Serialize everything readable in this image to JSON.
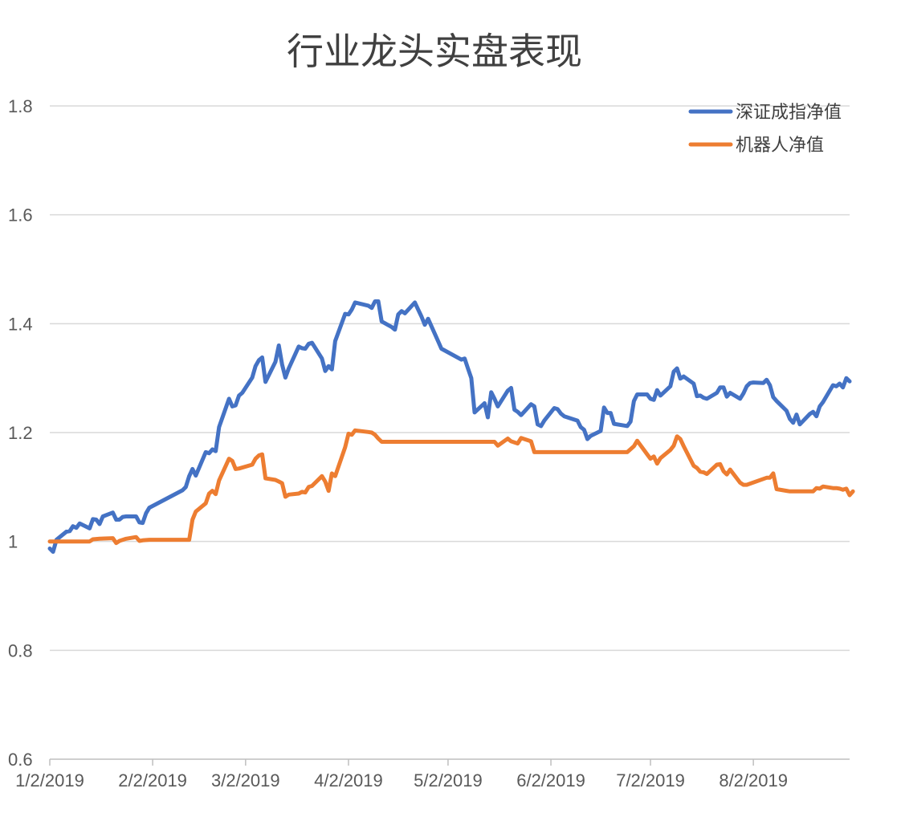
{
  "chart_data": {
    "type": "line",
    "title": "行业龙头实盘表现",
    "xlabel": "",
    "ylabel": "",
    "ylim": [
      0.6,
      1.8
    ],
    "yticks": [
      "0.6",
      "0.8",
      "1",
      "1.2",
      "1.4",
      "1.6",
      "1.8"
    ],
    "xlim": [
      "2019-01-02",
      "2019-08-31"
    ],
    "xticks": [
      "1/2/2019",
      "2/2/2019",
      "3/2/2019",
      "4/2/2019",
      "5/2/2019",
      "6/2/2019",
      "7/2/2019",
      "8/2/2019"
    ],
    "grid": true,
    "legend_position": "top-right",
    "series": [
      {
        "name": "深证成指净值",
        "color": "#4472C4",
        "points": [
          [
            "2019-01-02",
            0.987
          ],
          [
            "2019-01-03",
            0.981
          ],
          [
            "2019-01-04",
            1.003
          ],
          [
            "2019-01-07",
            1.018
          ],
          [
            "2019-01-08",
            1.019
          ],
          [
            "2019-01-09",
            1.028
          ],
          [
            "2019-01-10",
            1.025
          ],
          [
            "2019-01-11",
            1.033
          ],
          [
            "2019-01-14",
            1.024
          ],
          [
            "2019-01-15",
            1.041
          ],
          [
            "2019-01-16",
            1.04
          ],
          [
            "2019-01-17",
            1.032
          ],
          [
            "2019-01-18",
            1.046
          ],
          [
            "2019-01-21",
            1.053
          ],
          [
            "2019-01-22",
            1.04
          ],
          [
            "2019-01-23",
            1.04
          ],
          [
            "2019-01-24",
            1.045
          ],
          [
            "2019-01-25",
            1.046
          ],
          [
            "2019-01-28",
            1.046
          ],
          [
            "2019-01-29",
            1.035
          ],
          [
            "2019-01-30",
            1.034
          ],
          [
            "2019-01-31",
            1.052
          ],
          [
            "2019-02-01",
            1.062
          ],
          [
            "2019-02-11",
            1.094
          ],
          [
            "2019-02-12",
            1.1
          ],
          [
            "2019-02-13",
            1.12
          ],
          [
            "2019-02-14",
            1.133
          ],
          [
            "2019-02-15",
            1.121
          ],
          [
            "2019-02-18",
            1.164
          ],
          [
            "2019-02-19",
            1.162
          ],
          [
            "2019-02-20",
            1.169
          ],
          [
            "2019-02-21",
            1.166
          ],
          [
            "2019-02-22",
            1.21
          ],
          [
            "2019-02-25",
            1.262
          ],
          [
            "2019-02-26",
            1.248
          ],
          [
            "2019-02-27",
            1.25
          ],
          [
            "2019-02-28",
            1.268
          ],
          [
            "2019-03-01",
            1.273
          ],
          [
            "2019-03-04",
            1.301
          ],
          [
            "2019-03-05",
            1.322
          ],
          [
            "2019-03-06",
            1.333
          ],
          [
            "2019-03-07",
            1.338
          ],
          [
            "2019-03-08",
            1.293
          ],
          [
            "2019-03-11",
            1.33
          ],
          [
            "2019-03-12",
            1.36
          ],
          [
            "2019-03-13",
            1.325
          ],
          [
            "2019-03-14",
            1.301
          ],
          [
            "2019-03-15",
            1.318
          ],
          [
            "2019-03-18",
            1.358
          ],
          [
            "2019-03-19",
            1.355
          ],
          [
            "2019-03-20",
            1.354
          ],
          [
            "2019-03-21",
            1.363
          ],
          [
            "2019-03-22",
            1.365
          ],
          [
            "2019-03-25",
            1.336
          ],
          [
            "2019-03-26",
            1.313
          ],
          [
            "2019-03-27",
            1.322
          ],
          [
            "2019-03-28",
            1.316
          ],
          [
            "2019-03-29",
            1.368
          ],
          [
            "2019-04-01",
            1.418
          ],
          [
            "2019-04-02",
            1.417
          ],
          [
            "2019-04-03",
            1.426
          ],
          [
            "2019-04-04",
            1.439
          ],
          [
            "2019-04-08",
            1.433
          ],
          [
            "2019-04-09",
            1.429
          ],
          [
            "2019-04-10",
            1.441
          ],
          [
            "2019-04-11",
            1.441
          ],
          [
            "2019-04-12",
            1.404
          ],
          [
            "2019-04-15",
            1.394
          ],
          [
            "2019-04-16",
            1.389
          ],
          [
            "2019-04-17",
            1.417
          ],
          [
            "2019-04-18",
            1.423
          ],
          [
            "2019-04-19",
            1.419
          ],
          [
            "2019-04-22",
            1.439
          ],
          [
            "2019-04-23",
            1.426
          ],
          [
            "2019-04-24",
            1.413
          ],
          [
            "2019-04-25",
            1.398
          ],
          [
            "2019-04-26",
            1.409
          ],
          [
            "2019-04-29",
            1.368
          ],
          [
            "2019-04-30",
            1.354
          ],
          [
            "2019-05-06",
            1.334
          ],
          [
            "2019-05-07",
            1.336
          ],
          [
            "2019-05-08",
            1.318
          ],
          [
            "2019-05-09",
            1.3
          ],
          [
            "2019-05-10",
            1.237
          ],
          [
            "2019-05-13",
            1.254
          ],
          [
            "2019-05-14",
            1.228
          ],
          [
            "2019-05-15",
            1.274
          ],
          [
            "2019-05-16",
            1.262
          ],
          [
            "2019-05-17",
            1.248
          ],
          [
            "2019-05-20",
            1.277
          ],
          [
            "2019-05-21",
            1.282
          ],
          [
            "2019-05-22",
            1.242
          ],
          [
            "2019-05-23",
            1.238
          ],
          [
            "2019-05-24",
            1.232
          ],
          [
            "2019-05-27",
            1.252
          ],
          [
            "2019-05-28",
            1.248
          ],
          [
            "2019-05-29",
            1.215
          ],
          [
            "2019-05-30",
            1.212
          ],
          [
            "2019-05-31",
            1.222
          ],
          [
            "2019-06-03",
            1.245
          ],
          [
            "2019-06-04",
            1.243
          ],
          [
            "2019-06-05",
            1.235
          ],
          [
            "2019-06-06",
            1.23
          ],
          [
            "2019-06-10",
            1.222
          ],
          [
            "2019-06-11",
            1.21
          ],
          [
            "2019-06-12",
            1.205
          ],
          [
            "2019-06-13",
            1.188
          ],
          [
            "2019-06-14",
            1.194
          ],
          [
            "2019-06-17",
            1.203
          ],
          [
            "2019-06-18",
            1.246
          ],
          [
            "2019-06-19",
            1.236
          ],
          [
            "2019-06-20",
            1.236
          ],
          [
            "2019-06-21",
            1.216
          ],
          [
            "2019-06-24",
            1.213
          ],
          [
            "2019-06-25",
            1.212
          ],
          [
            "2019-06-26",
            1.22
          ],
          [
            "2019-06-27",
            1.258
          ],
          [
            "2019-06-28",
            1.27
          ],
          [
            "2019-07-01",
            1.27
          ],
          [
            "2019-07-02",
            1.262
          ],
          [
            "2019-07-03",
            1.26
          ],
          [
            "2019-07-04",
            1.278
          ],
          [
            "2019-07-05",
            1.268
          ],
          [
            "2019-07-08",
            1.285
          ],
          [
            "2019-07-09",
            1.312
          ],
          [
            "2019-07-10",
            1.318
          ],
          [
            "2019-07-11",
            1.299
          ],
          [
            "2019-07-12",
            1.303
          ],
          [
            "2019-07-15",
            1.29
          ],
          [
            "2019-07-16",
            1.267
          ],
          [
            "2019-07-17",
            1.268
          ],
          [
            "2019-07-18",
            1.264
          ],
          [
            "2019-07-19",
            1.262
          ],
          [
            "2019-07-22",
            1.273
          ],
          [
            "2019-07-23",
            1.283
          ],
          [
            "2019-07-24",
            1.283
          ],
          [
            "2019-07-25",
            1.266
          ],
          [
            "2019-07-26",
            1.273
          ],
          [
            "2019-07-29",
            1.262
          ],
          [
            "2019-07-30",
            1.272
          ],
          [
            "2019-07-31",
            1.285
          ],
          [
            "2019-08-01",
            1.291
          ],
          [
            "2019-08-02",
            1.292
          ],
          [
            "2019-08-05",
            1.291
          ],
          [
            "2019-08-06",
            1.297
          ],
          [
            "2019-08-07",
            1.287
          ],
          [
            "2019-08-08",
            1.265
          ],
          [
            "2019-08-09",
            1.258
          ],
          [
            "2019-08-12",
            1.24
          ],
          [
            "2019-08-13",
            1.225
          ],
          [
            "2019-08-14",
            1.218
          ],
          [
            "2019-08-15",
            1.233
          ],
          [
            "2019-08-16",
            1.215
          ],
          [
            "2019-08-19",
            1.234
          ],
          [
            "2019-08-20",
            1.238
          ],
          [
            "2019-08-21",
            1.23
          ],
          [
            "2019-08-22",
            1.248
          ],
          [
            "2019-08-23",
            1.256
          ],
          [
            "2019-08-26",
            1.287
          ],
          [
            "2019-08-27",
            1.285
          ],
          [
            "2019-08-28",
            1.29
          ],
          [
            "2019-08-29",
            1.283
          ],
          [
            "2019-08-30",
            1.3
          ],
          [
            "2019-08-31",
            1.294
          ]
        ]
      },
      {
        "name": "机器人净值",
        "color": "#ED7D31",
        "points": [
          [
            "2019-01-02",
            1.0
          ],
          [
            "2019-01-14",
            1.0
          ],
          [
            "2019-01-15",
            1.004
          ],
          [
            "2019-01-17",
            1.005
          ],
          [
            "2019-01-21",
            1.006
          ],
          [
            "2019-01-22",
            0.997
          ],
          [
            "2019-01-23",
            1.001
          ],
          [
            "2019-01-25",
            1.005
          ],
          [
            "2019-01-28",
            1.008
          ],
          [
            "2019-01-29",
            1.001
          ],
          [
            "2019-01-30",
            1.002
          ],
          [
            "2019-02-01",
            1.003
          ],
          [
            "2019-02-13",
            1.003
          ],
          [
            "2019-02-14",
            1.04
          ],
          [
            "2019-02-15",
            1.055
          ],
          [
            "2019-02-18",
            1.07
          ],
          [
            "2019-02-19",
            1.088
          ],
          [
            "2019-02-20",
            1.093
          ],
          [
            "2019-02-21",
            1.087
          ],
          [
            "2019-02-22",
            1.112
          ],
          [
            "2019-02-25",
            1.152
          ],
          [
            "2019-02-26",
            1.148
          ],
          [
            "2019-02-27",
            1.133
          ],
          [
            "2019-02-28",
            1.134
          ],
          [
            "2019-03-04",
            1.141
          ],
          [
            "2019-03-05",
            1.152
          ],
          [
            "2019-03-06",
            1.158
          ],
          [
            "2019-03-07",
            1.16
          ],
          [
            "2019-03-08",
            1.116
          ],
          [
            "2019-03-11",
            1.113
          ],
          [
            "2019-03-12",
            1.11
          ],
          [
            "2019-03-13",
            1.107
          ],
          [
            "2019-03-14",
            1.082
          ],
          [
            "2019-03-15",
            1.086
          ],
          [
            "2019-03-18",
            1.088
          ],
          [
            "2019-03-19",
            1.091
          ],
          [
            "2019-03-20",
            1.09
          ],
          [
            "2019-03-21",
            1.1
          ],
          [
            "2019-03-22",
            1.102
          ],
          [
            "2019-03-25",
            1.12
          ],
          [
            "2019-03-26",
            1.11
          ],
          [
            "2019-03-27",
            1.093
          ],
          [
            "2019-03-28",
            1.125
          ],
          [
            "2019-03-29",
            1.12
          ],
          [
            "2019-04-01",
            1.173
          ],
          [
            "2019-04-02",
            1.198
          ],
          [
            "2019-04-03",
            1.196
          ],
          [
            "2019-04-04",
            1.204
          ],
          [
            "2019-04-08",
            1.201
          ],
          [
            "2019-04-09",
            1.2
          ],
          [
            "2019-04-10",
            1.196
          ],
          [
            "2019-04-11",
            1.189
          ],
          [
            "2019-04-12",
            1.183
          ],
          [
            "2019-05-16",
            1.183
          ],
          [
            "2019-05-17",
            1.176
          ],
          [
            "2019-05-20",
            1.189
          ],
          [
            "2019-05-21",
            1.184
          ],
          [
            "2019-05-22",
            1.182
          ],
          [
            "2019-05-23",
            1.18
          ],
          [
            "2019-05-24",
            1.19
          ],
          [
            "2019-05-27",
            1.184
          ],
          [
            "2019-05-28",
            1.164
          ],
          [
            "2019-06-25",
            1.164
          ],
          [
            "2019-06-27",
            1.175
          ],
          [
            "2019-06-28",
            1.185
          ],
          [
            "2019-07-01",
            1.16
          ],
          [
            "2019-07-02",
            1.152
          ],
          [
            "2019-07-03",
            1.156
          ],
          [
            "2019-07-04",
            1.143
          ],
          [
            "2019-07-05",
            1.153
          ],
          [
            "2019-07-08",
            1.168
          ],
          [
            "2019-07-09",
            1.176
          ],
          [
            "2019-07-10",
            1.193
          ],
          [
            "2019-07-11",
            1.188
          ],
          [
            "2019-07-12",
            1.175
          ],
          [
            "2019-07-15",
            1.139
          ],
          [
            "2019-07-16",
            1.135
          ],
          [
            "2019-07-17",
            1.128
          ],
          [
            "2019-07-18",
            1.127
          ],
          [
            "2019-07-19",
            1.124
          ],
          [
            "2019-07-22",
            1.141
          ],
          [
            "2019-07-23",
            1.142
          ],
          [
            "2019-07-24",
            1.129
          ],
          [
            "2019-07-25",
            1.123
          ],
          [
            "2019-07-26",
            1.132
          ],
          [
            "2019-07-29",
            1.108
          ],
          [
            "2019-07-30",
            1.104
          ],
          [
            "2019-07-31",
            1.104
          ],
          [
            "2019-08-06",
            1.117
          ],
          [
            "2019-08-07",
            1.117
          ],
          [
            "2019-08-08",
            1.125
          ],
          [
            "2019-08-09",
            1.096
          ],
          [
            "2019-08-12",
            1.093
          ],
          [
            "2019-08-13",
            1.092
          ],
          [
            "2019-08-20",
            1.092
          ],
          [
            "2019-08-21",
            1.098
          ],
          [
            "2019-08-22",
            1.097
          ],
          [
            "2019-08-23",
            1.101
          ],
          [
            "2019-08-26",
            1.098
          ],
          [
            "2019-08-27",
            1.098
          ],
          [
            "2019-08-28",
            1.097
          ],
          [
            "2019-08-29",
            1.095
          ],
          [
            "2019-08-30",
            1.097
          ],
          [
            "2019-08-31",
            1.085
          ],
          [
            "2019-09-01",
            1.092
          ]
        ]
      }
    ]
  }
}
